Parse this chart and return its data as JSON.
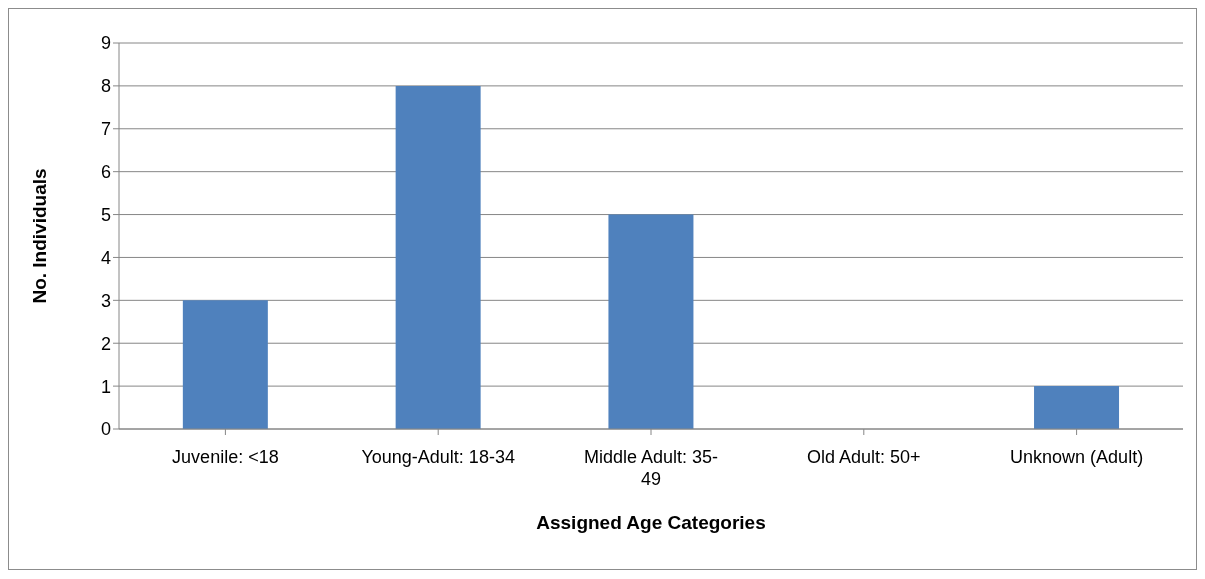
{
  "chart_data": {
    "type": "bar",
    "xlabel": "Assigned Age Categories",
    "ylabel": "No. Individuals",
    "categories": [
      "Juvenile: <18",
      "Young-Adult: 18-34",
      "Middle Adult: 35-49",
      "Old Adult: 50+",
      "Unknown (Adult)"
    ],
    "values": [
      3,
      8,
      5,
      0,
      1
    ],
    "color": "#4f81bd",
    "ylim": [
      0,
      9
    ],
    "yticks": [
      0,
      1,
      2,
      3,
      4,
      5,
      6,
      7,
      8,
      9
    ],
    "grid": "y"
  }
}
